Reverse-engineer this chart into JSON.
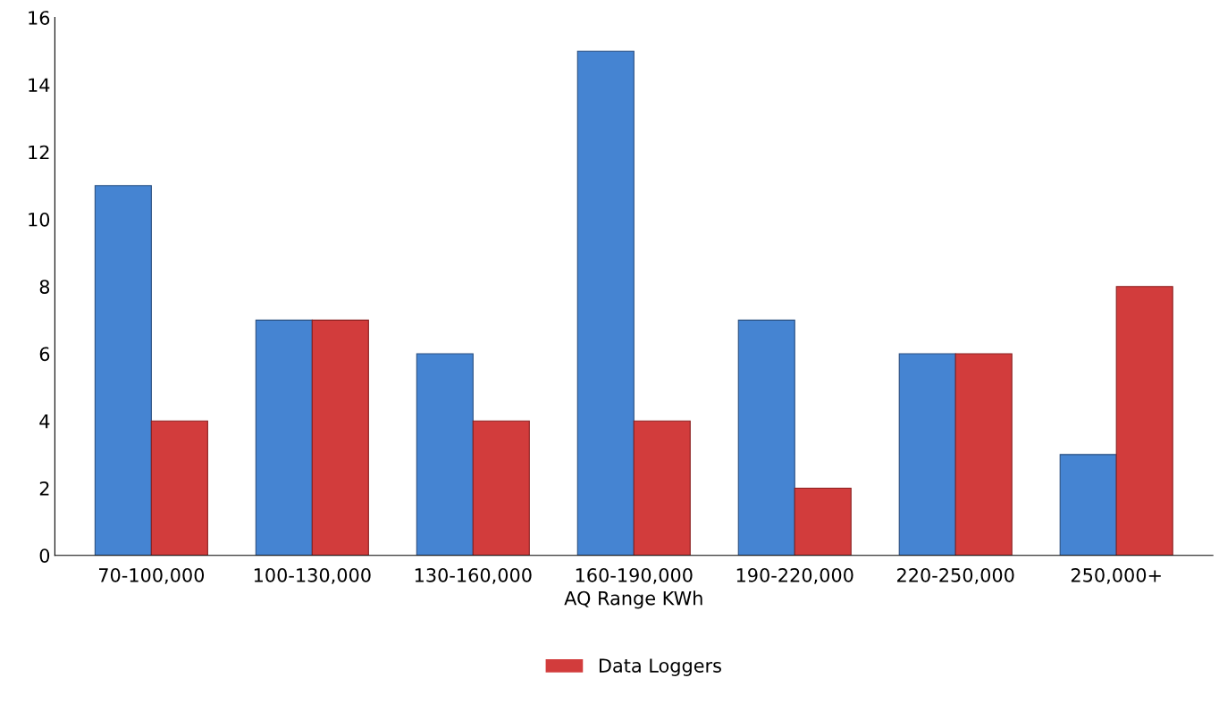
{
  "chart_data": {
    "type": "bar",
    "xlabel": "AQ Range KWh",
    "categories": [
      "70-100,000",
      "100-130,000",
      "130-160,000",
      "160-190,000",
      "190-220,000",
      "220-250,000",
      "250,000+"
    ],
    "series": [
      {
        "color": "#4584d2",
        "values": [
          11,
          7,
          6,
          15,
          7,
          6,
          3
        ]
      },
      {
        "name": "Data Loggers",
        "color": "#d23c3c",
        "values": [
          4,
          7,
          4,
          4,
          2,
          6,
          8
        ]
      }
    ],
    "ylim": [
      0,
      16
    ],
    "yticks": [
      0,
      2,
      4,
      6,
      8,
      10,
      12,
      14,
      16
    ],
    "grid": false,
    "legend": "bottom"
  }
}
